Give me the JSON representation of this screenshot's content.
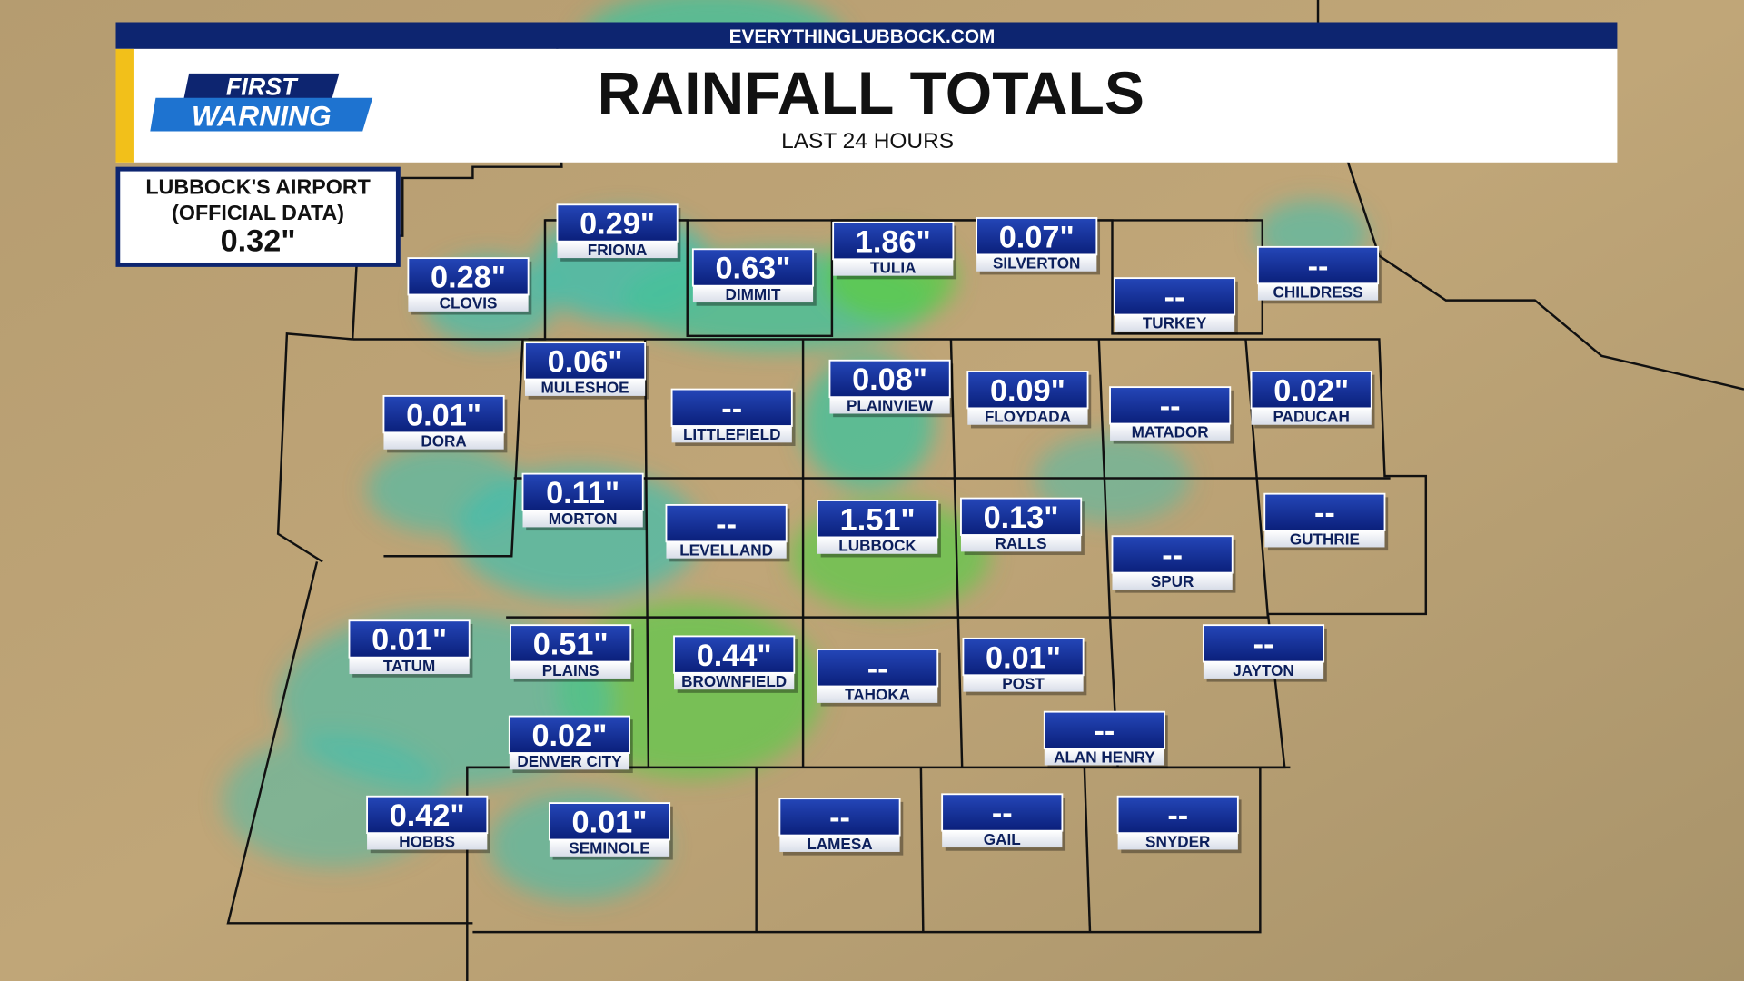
{
  "header": {
    "site": "EVERYTHINGLUBBOCK.COM",
    "title": "RAINFALL TOTALS",
    "subtitle": "LAST 24 HOURS",
    "logo_top": "FIRST",
    "logo_bottom": "WARNING"
  },
  "airport": {
    "line1": "LUBBOCK'S AIRPORT",
    "line2": "(OFFICIAL DATA)",
    "value": "0.32\""
  },
  "stations": [
    {
      "value": "0.29\"",
      "name": "FRIONA"
    },
    {
      "value": "0.28\"",
      "name": "CLOVIS"
    },
    {
      "value": "0.63\"",
      "name": "DIMMIT"
    },
    {
      "value": "1.86\"",
      "name": "TULIA"
    },
    {
      "value": "0.07\"",
      "name": "SILVERTON"
    },
    {
      "value": "--",
      "name": "TURKEY"
    },
    {
      "value": "--",
      "name": "CHILDRESS"
    },
    {
      "value": "0.06\"",
      "name": "MULESHOE"
    },
    {
      "value": "0.01\"",
      "name": "DORA"
    },
    {
      "value": "--",
      "name": "LITTLEFIELD"
    },
    {
      "value": "0.08\"",
      "name": "PLAINVIEW"
    },
    {
      "value": "0.09\"",
      "name": "FLOYDADA"
    },
    {
      "value": "--",
      "name": "MATADOR"
    },
    {
      "value": "0.02\"",
      "name": "PADUCAH"
    },
    {
      "value": "0.11\"",
      "name": "MORTON"
    },
    {
      "value": "--",
      "name": "LEVELLAND"
    },
    {
      "value": "1.51\"",
      "name": "LUBBOCK"
    },
    {
      "value": "0.13\"",
      "name": "RALLS"
    },
    {
      "value": "--",
      "name": "SPUR"
    },
    {
      "value": "--",
      "name": "GUTHRIE"
    },
    {
      "value": "0.01\"",
      "name": "TATUM"
    },
    {
      "value": "0.51\"",
      "name": "PLAINS"
    },
    {
      "value": "0.44\"",
      "name": "BROWNFIELD"
    },
    {
      "value": "--",
      "name": "TAHOKA"
    },
    {
      "value": "0.01\"",
      "name": "POST"
    },
    {
      "value": "--",
      "name": "JAYTON"
    },
    {
      "value": "--",
      "name": "ALAN HENRY"
    },
    {
      "value": "0.02\"",
      "name": "DENVER CITY"
    },
    {
      "value": "0.42\"",
      "name": "HOBBS"
    },
    {
      "value": "0.01\"",
      "name": "SEMINOLE"
    },
    {
      "value": "--",
      "name": "LAMESA"
    },
    {
      "value": "--",
      "name": "GAIL"
    },
    {
      "value": "--",
      "name": "SNYDER"
    }
  ]
}
